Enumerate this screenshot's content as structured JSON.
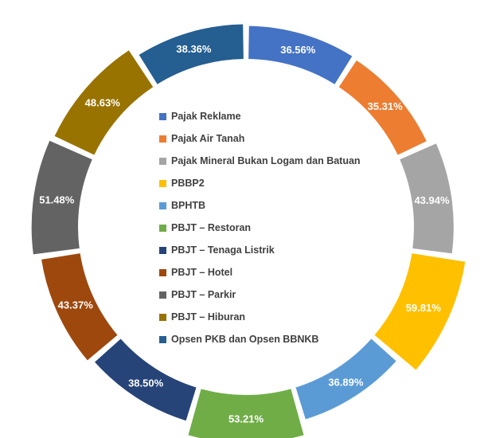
{
  "chart_data": {
    "type": "pie",
    "style": "donut",
    "categories": [
      "Pajak Reklame",
      "Pajak Air Tanah",
      "Pajak Mineral Bukan Logam dan Batuan",
      "PBBP2",
      "BPHTB",
      "PBJT – Restoran",
      "PBJT – Tenaga Listrik",
      "PBJT – Hotel",
      "PBJT – Parkir",
      "PBJT – Hiburan",
      "Opsen PKB dan Opsen BBNKB"
    ],
    "values": [
      36.56,
      35.31,
      43.94,
      59.81,
      36.89,
      53.21,
      38.5,
      43.37,
      51.48,
      48.63,
      38.36
    ],
    "value_labels": [
      "36.56%",
      "35.31%",
      "43.94%",
      "59.81%",
      "36.89%",
      "53.21%",
      "38.50%",
      "43.37%",
      "51.48%",
      "48.63%",
      "38.36%"
    ],
    "colors": [
      "#4472C4",
      "#ED7D31",
      "#A5A5A5",
      "#FFC000",
      "#5B9BD5",
      "#70AD47",
      "#264478",
      "#9E480E",
      "#636363",
      "#997300",
      "#255E91"
    ],
    "segment_value_scale": [
      0,
      60
    ],
    "legend_position": "center",
    "title": ""
  }
}
